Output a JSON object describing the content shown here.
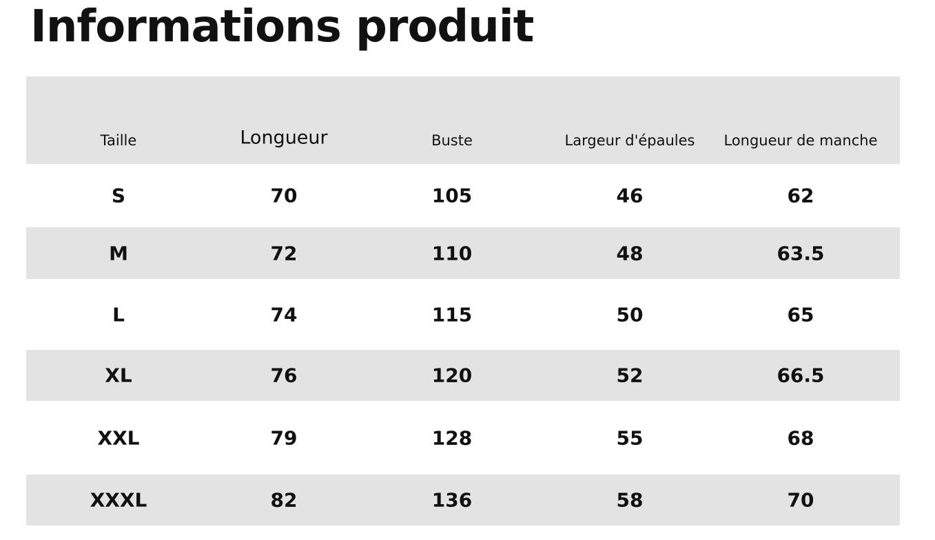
{
  "header": {
    "title": "Informations produit"
  },
  "table": {
    "columns": [
      "Taille",
      "Longueur",
      "Buste",
      "Largeur d'épaules",
      "Longueur de manche"
    ],
    "rows": [
      [
        "S",
        "70",
        "105",
        "46",
        "62"
      ],
      [
        "M",
        "72",
        "110",
        "48",
        "63.5"
      ],
      [
        "L",
        "74",
        "115",
        "50",
        "65"
      ],
      [
        "XL",
        "76",
        "120",
        "52",
        "66.5"
      ],
      [
        "XXL",
        "79",
        "128",
        "55",
        "68"
      ],
      [
        "XXXL",
        "82",
        "136",
        "58",
        "70"
      ]
    ]
  }
}
